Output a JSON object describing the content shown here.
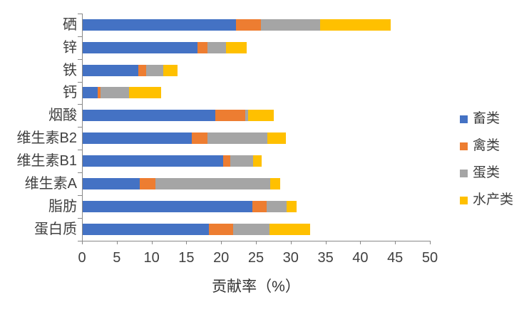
{
  "chart_data": {
    "type": "bar",
    "orientation": "horizontal",
    "stacked": true,
    "title": "",
    "xlabel": "贡献率（%）",
    "ylabel": "",
    "xlim": [
      0,
      50
    ],
    "xticks": [
      0,
      5,
      10,
      15,
      20,
      25,
      30,
      35,
      40,
      45,
      50
    ],
    "grid": false,
    "legend_position": "right",
    "categories": [
      "硒",
      "锌",
      "铁",
      "钙",
      "烟酸",
      "维生素B2",
      "维生素B1",
      "维生素A",
      "脂肪",
      "蛋白质"
    ],
    "series": [
      {
        "name": "畜类",
        "color": "#4472C4",
        "values": [
          22.0,
          16.5,
          8.0,
          2.2,
          19.1,
          15.7,
          20.2,
          8.2,
          24.4,
          18.1
        ]
      },
      {
        "name": "禽类",
        "color": "#ED7D31",
        "values": [
          3.6,
          1.4,
          1.1,
          0.4,
          4.3,
          2.2,
          1.0,
          2.2,
          2.0,
          3.5
        ]
      },
      {
        "name": "蛋类",
        "color": "#A5A5A5",
        "values": [
          8.5,
          2.7,
          2.5,
          4.1,
          0.4,
          8.6,
          3.3,
          16.5,
          2.9,
          5.2
        ]
      },
      {
        "name": "水产类",
        "color": "#FFC000",
        "values": [
          10.2,
          3.0,
          2.0,
          4.6,
          3.7,
          2.7,
          1.2,
          1.5,
          1.4,
          5.9
        ]
      }
    ],
    "colors": {
      "axis": "#898989",
      "text": "#404040"
    }
  }
}
